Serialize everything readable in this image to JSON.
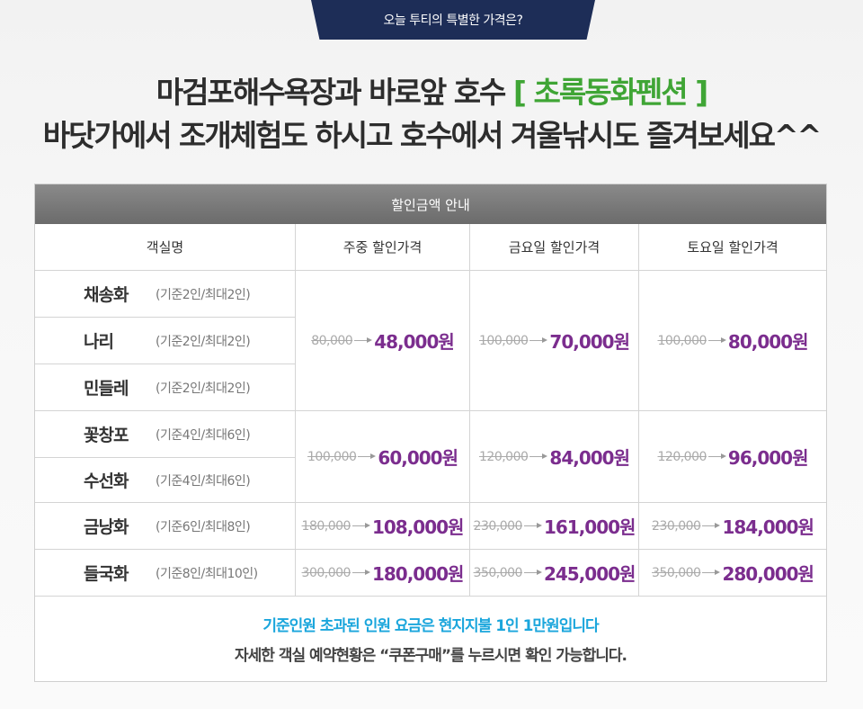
{
  "top_tab": "오늘 투티의 특별한 가격은?",
  "headline": {
    "line1_prefix": "마검포해수욕장과 바로앞 호수",
    "line1_accent": "[ 초록동화펜션 ]",
    "line2": "바닷가에서 조개체험도 하시고 호수에서 겨울낚시도 즐겨보세요^^"
  },
  "colors": {
    "accent_green": "#3fa535",
    "price_purple": "#7b2d8e",
    "note_blue": "#1ba6dc",
    "tab_navy": "#1d2d57"
  },
  "table": {
    "caption": "할인금액 안내",
    "headers": [
      "객실명",
      "주중  할인가격",
      "금요일 할인가격",
      "토요일 할인가격"
    ],
    "rooms": [
      {
        "name": "채송화",
        "capacity": "(기준2인/최대2인)"
      },
      {
        "name": "나리",
        "capacity": "(기준2인/최대2인)"
      },
      {
        "name": "민들레",
        "capacity": "(기준2인/최대2인)"
      },
      {
        "name": "꽃창포",
        "capacity": "(기준4인/최대6인)"
      },
      {
        "name": "수선화",
        "capacity": "(기준4인/최대6인)"
      },
      {
        "name": "금낭화",
        "capacity": "(기준6인/최대8인)"
      },
      {
        "name": "들국화",
        "capacity": "(기준8인/최대10인)"
      }
    ],
    "price_groups": [
      {
        "weekday": {
          "old": "80,000",
          "new": "48,000원"
        },
        "friday": {
          "old": "100,000",
          "new": "70,000원"
        },
        "saturday": {
          "old": "100,000",
          "new": "80,000원"
        }
      },
      {
        "weekday": {
          "old": "100,000",
          "new": "60,000원"
        },
        "friday": {
          "old": "120,000",
          "new": "84,000원"
        },
        "saturday": {
          "old": "120,000",
          "new": "96,000원"
        }
      },
      {
        "weekday": {
          "old": "180,000",
          "new": "108,000원"
        },
        "friday": {
          "old": "230,000",
          "new": "161,000원"
        },
        "saturday": {
          "old": "230,000",
          "new": "184,000원"
        }
      },
      {
        "weekday": {
          "old": "300,000",
          "new": "180,000원"
        },
        "friday": {
          "old": "350,000",
          "new": "245,000원"
        },
        "saturday": {
          "old": "350,000",
          "new": "280,000원"
        }
      }
    ],
    "note_line1": "기준인원 초과된 인원 요금은 현지지불 1인 1만원입니다",
    "note_line2": "자세한 객실 예약현황은 “쿠폰구매”를 누르시면 확인 가능합니다."
  }
}
